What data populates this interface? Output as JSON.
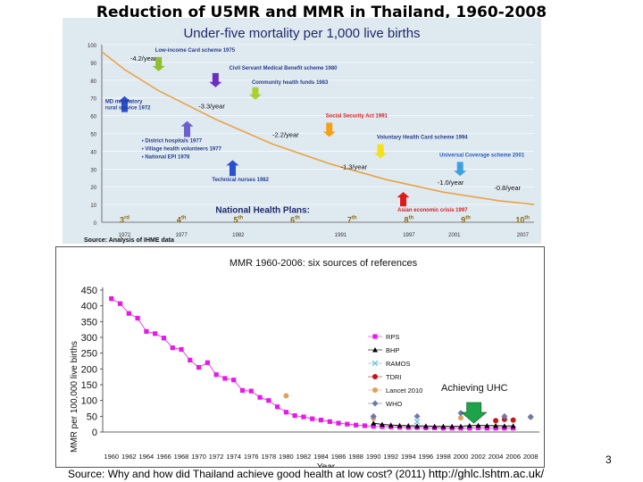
{
  "slide": {
    "title": "Reduction of  U5MR and MMR in Thailand, 1960-2008",
    "source_prefix": "Source:  Why and how did Thailand achieve good health at low cost? (2011) ",
    "source_url": "http://ghlc.lshtm.ac.uk/",
    "page_number": "3"
  },
  "colors": {
    "u5_bg": "#dfe9f0",
    "curve": "#e9a445",
    "u5_title": "#1f2a6b",
    "policy_red_text": "#d61f1f",
    "mmr_magenta": "#e619e6",
    "uhc_arrow": "#1fa34a"
  },
  "chart_data": [
    {
      "type": "line",
      "title": "Under-five mortality per 1,000 live births",
      "xlabel": "",
      "ylabel": "",
      "ylim": [
        0,
        100
      ],
      "y_ticks": [
        0,
        10,
        20,
        30,
        40,
        50,
        60,
        70,
        80,
        90,
        100
      ],
      "x_ticks": [
        "1972",
        "1977",
        "1982",
        "1991",
        "1997",
        "2001",
        "2007"
      ],
      "xlim": [
        1970,
        2008
      ],
      "series": [
        {
          "name": "U5MR",
          "x": [
            1970,
            1972,
            1975,
            1980,
            1985,
            1990,
            1995,
            2000,
            2005,
            2008
          ],
          "values": [
            96,
            86,
            74,
            58,
            44,
            33,
            24,
            17,
            12,
            10
          ]
        }
      ],
      "rate_labels": [
        {
          "text": "-4.2/year",
          "x": 1972.5,
          "y": 91
        },
        {
          "text": "-3.3/year",
          "x": 1978.5,
          "y": 64
        },
        {
          "text": "-2.2/year",
          "x": 1985,
          "y": 48
        },
        {
          "text": "-1.3/year",
          "x": 1991,
          "y": 30
        },
        {
          "text": "-1.0/year",
          "x": 1999.5,
          "y": 21
        },
        {
          "text": "-0.8/year",
          "x": 2004.5,
          "y": 18
        }
      ],
      "policies": [
        {
          "text": "Low-income Card scheme 1975",
          "x": 1975,
          "y": 96,
          "color": "#2a3f8f"
        },
        {
          "text": "Civil Servant Medical Benefit scheme 1980",
          "x": 1981.5,
          "y": 86,
          "color": "#2a3f8f"
        },
        {
          "text": "Community health funds 1983",
          "x": 1983.5,
          "y": 78,
          "color": "#2a3f8f"
        },
        {
          "text": "Social Security Act 1991",
          "x": 1990,
          "y": 59,
          "color": "#d61f1f"
        },
        {
          "text": "Voluntary Health Card scheme 1994",
          "x": 1994.5,
          "y": 47,
          "color": "#2a3f8f"
        },
        {
          "text": "Universal Coverage scheme 2001",
          "x": 2000,
          "y": 37,
          "color": "#2a5fbf"
        },
        {
          "text": "Asian economic crisis 1997",
          "x": 1996,
          "y": 6,
          "color": "#d61f1f"
        },
        {
          "text": "Technical nurses 1982",
          "x": 1980,
          "y": 23,
          "color": "#2a3f8f"
        }
      ],
      "md_label": [
        "MD mandatory",
        "rural service 1972"
      ],
      "bullets": [
        "• District hospitals 1977",
        "• Village health volunteers 1977",
        "• National EPI 1978"
      ],
      "arrows": [
        {
          "x": 1975,
          "dir": "down",
          "y_from": 93,
          "y_to": 85,
          "color": "#8fbf2f"
        },
        {
          "x": 1980,
          "dir": "down",
          "y_from": 84,
          "y_to": 76,
          "color": "#6a2fbf"
        },
        {
          "x": 1983.5,
          "dir": "down",
          "y_from": 76,
          "y_to": 69,
          "color": "#a8d02f"
        },
        {
          "x": 1972,
          "dir": "up",
          "y_from": 62,
          "y_to": 71,
          "color": "#2a4fcf"
        },
        {
          "x": 1977.5,
          "dir": "up",
          "y_from": 48,
          "y_to": 57,
          "color": "#6a5fcf"
        },
        {
          "x": 1981.5,
          "dir": "up",
          "y_from": 26,
          "y_to": 35,
          "color": "#2a4fcf"
        },
        {
          "x": 1990,
          "dir": "down",
          "y_from": 56,
          "y_to": 48,
          "color": "#f5a01a"
        },
        {
          "x": 1994.5,
          "dir": "down",
          "y_from": 44,
          "y_to": 36,
          "color": "#f5e01a"
        },
        {
          "x": 2001.5,
          "dir": "down",
          "y_from": 34,
          "y_to": 26,
          "color": "#3fa0e0"
        },
        {
          "x": 1996.5,
          "dir": "up",
          "y_from": 9,
          "y_to": 17,
          "color": "#e01a1a"
        }
      ],
      "plans_title": "National Health Plans:",
      "plans": [
        {
          "num": "3",
          "suf": "rd",
          "x": 1972
        },
        {
          "num": "4",
          "suf": "th",
          "x": 1977
        },
        {
          "num": "5",
          "suf": "th",
          "x": 1982
        },
        {
          "num": "6",
          "suf": "th",
          "x": 1987
        },
        {
          "num": "7",
          "suf": "th",
          "x": 1992
        },
        {
          "num": "8",
          "suf": "th",
          "x": 1997
        },
        {
          "num": "9",
          "suf": "th",
          "x": 2002
        },
        {
          "num": "10",
          "suf": "th",
          "x": 2007
        }
      ],
      "source_note": "Source: Analysis of IHME data"
    },
    {
      "type": "scatter",
      "title": "MMR 1960-2006: six sources of references",
      "xlabel": "Year",
      "ylabel": "MMR per 100,000 live births",
      "ylim": [
        0,
        450
      ],
      "xlim": [
        1959,
        2009
      ],
      "y_ticks": [
        0,
        50,
        100,
        150,
        200,
        250,
        300,
        350,
        400,
        450
      ],
      "x_ticks": [
        1960,
        1962,
        1964,
        1966,
        1968,
        1970,
        1972,
        1974,
        1976,
        1978,
        1980,
        1982,
        1984,
        1986,
        1988,
        1990,
        1992,
        1994,
        1996,
        1998,
        2000,
        2002,
        2004,
        2006,
        2008
      ],
      "legend": [
        "RPS",
        "BHP",
        "RAMOS",
        "TDRI",
        "Lancet 2010",
        "WHO"
      ],
      "annotation": "Achieving UHC",
      "series": [
        {
          "name": "RPS",
          "color": "#e619e6",
          "marker": "square",
          "x": [
            1960,
            1961,
            1962,
            1963,
            1964,
            1965,
            1966,
            1967,
            1968,
            1969,
            1970,
            1971,
            1972,
            1973,
            1974,
            1975,
            1976,
            1977,
            1978,
            1979,
            1980,
            1981,
            1982,
            1983,
            1984,
            1985,
            1986,
            1987,
            1988,
            1989,
            1990,
            1991,
            1992,
            1993,
            1994,
            1995,
            1996,
            1997,
            1998,
            1999,
            2000,
            2001,
            2002,
            2003,
            2004,
            2005,
            2006
          ],
          "values": [
            423,
            407,
            376,
            361,
            319,
            312,
            298,
            267,
            262,
            228,
            205,
            220,
            182,
            170,
            165,
            132,
            130,
            110,
            100,
            80,
            63,
            52,
            48,
            42,
            38,
            33,
            28,
            25,
            22,
            20,
            18,
            17,
            16,
            15,
            14,
            14,
            13,
            13,
            12,
            12,
            12,
            12,
            13,
            12,
            12,
            12,
            12
          ]
        },
        {
          "name": "BHP",
          "color": "#000000",
          "marker": "triangle",
          "x": [
            1990,
            1991,
            1992,
            1993,
            1994,
            1995,
            1996,
            1997,
            1998,
            1999,
            2000,
            2001,
            2002,
            2003,
            2004,
            2005,
            2006
          ],
          "values": [
            28,
            24,
            22,
            21,
            20,
            19,
            19,
            18,
            18,
            18,
            18,
            20,
            21,
            20,
            20,
            19,
            19
          ]
        },
        {
          "name": "RAMOS",
          "color": "#5fc0d0",
          "marker": "x",
          "x": [
            1995
          ],
          "values": [
            33
          ]
        },
        {
          "name": "TDRI",
          "color": "#c01818",
          "marker": "circle",
          "x": [
            2004,
            2005,
            2006
          ],
          "values": [
            36,
            40,
            38
          ]
        },
        {
          "name": "Lancet 2010",
          "color": "#e0a060",
          "marker": "circle",
          "x": [
            1980,
            1990,
            2000,
            2008
          ],
          "values": [
            115,
            44,
            45,
            47
          ]
        },
        {
          "name": "WHO",
          "color": "#6a7ab0",
          "marker": "diamond",
          "x": [
            1990,
            1995,
            2000,
            2005,
            2008
          ],
          "values": [
            50,
            50,
            60,
            50,
            48
          ]
        }
      ]
    }
  ]
}
